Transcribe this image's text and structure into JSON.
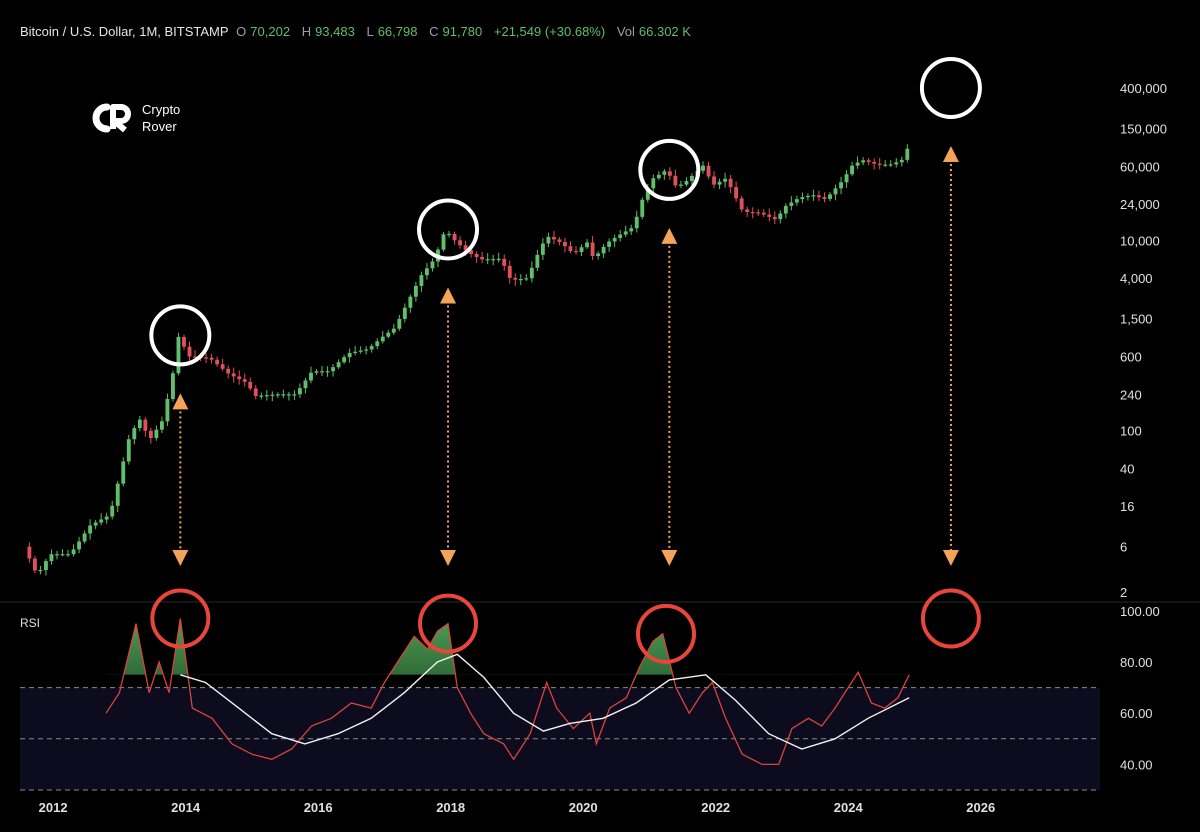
{
  "header": {
    "symbol": "Bitcoin / U.S. Dollar, 1M, BITSTAMP",
    "open_label": "O",
    "open": "70,202",
    "high_label": "H",
    "high": "93,483",
    "low_label": "L",
    "low": "66,798",
    "close_label": "C",
    "close": "91,780",
    "change": "+21,549 (+30.68%)",
    "vol_label": "Vol",
    "vol": "66.302 K"
  },
  "logo": {
    "line1": "Crypto",
    "line2": "Rover",
    "icon": "crypto-rover-logo-icon"
  },
  "colors": {
    "up": "#5fbf6a",
    "down": "#e0505a",
    "rsi": "#d9443a",
    "rsi_ma": "#f2f2f2",
    "arrow": "#f5a35a",
    "circle_red": "#e8463a"
  },
  "chart_data": [
    {
      "type": "candlestick",
      "title": "Bitcoin / U.S. Dollar, 1M, BITSTAMP",
      "x_ticks": [
        "2012",
        "2014",
        "2016",
        "2018",
        "2020",
        "2022",
        "2024",
        "2026"
      ],
      "y_scale": "log",
      "y_ticks": [
        "400,000",
        "150,000",
        "60,000",
        "24,000",
        "10,000",
        "4,000",
        "1,500",
        "600",
        "240",
        "100",
        "40",
        "16",
        "6",
        "2"
      ],
      "ylim": [
        2,
        400000
      ],
      "xlim": [
        2011.5,
        2027.8
      ],
      "highlighted_peaks": [
        {
          "x": 2013.92,
          "y": 1000
        },
        {
          "x": 2017.96,
          "y": 13000
        },
        {
          "x": 2021.3,
          "y": 55000
        },
        {
          "x": 2025.55,
          "y": 400000
        }
      ],
      "price_path": [
        [
          2011.6,
          6
        ],
        [
          2011.8,
          3
        ],
        [
          2012.0,
          5
        ],
        [
          2012.3,
          5
        ],
        [
          2012.6,
          10
        ],
        [
          2012.9,
          13
        ],
        [
          2013.2,
          90
        ],
        [
          2013.35,
          130
        ],
        [
          2013.5,
          80
        ],
        [
          2013.7,
          130
        ],
        [
          2013.85,
          400
        ],
        [
          2013.92,
          1000
        ],
        [
          2014.1,
          600
        ],
        [
          2014.4,
          580
        ],
        [
          2014.7,
          390
        ],
        [
          2014.95,
          320
        ],
        [
          2015.1,
          230
        ],
        [
          2015.4,
          240
        ],
        [
          2015.7,
          240
        ],
        [
          2015.95,
          420
        ],
        [
          2016.2,
          420
        ],
        [
          2016.5,
          650
        ],
        [
          2016.8,
          720
        ],
        [
          2017.0,
          950
        ],
        [
          2017.2,
          1200
        ],
        [
          2017.4,
          2300
        ],
        [
          2017.6,
          4300
        ],
        [
          2017.8,
          6400
        ],
        [
          2017.96,
          13000
        ],
        [
          2018.1,
          10000
        ],
        [
          2018.3,
          7500
        ],
        [
          2018.5,
          6300
        ],
        [
          2018.8,
          6400
        ],
        [
          2018.95,
          3800
        ],
        [
          2019.2,
          4000
        ],
        [
          2019.4,
          8500
        ],
        [
          2019.5,
          11000
        ],
        [
          2019.7,
          9500
        ],
        [
          2019.9,
          7200
        ],
        [
          2020.1,
          9500
        ],
        [
          2020.2,
          6400
        ],
        [
          2020.4,
          9400
        ],
        [
          2020.6,
          11500
        ],
        [
          2020.8,
          13800
        ],
        [
          2020.95,
          29000
        ],
        [
          2021.1,
          45000
        ],
        [
          2021.3,
          55000
        ],
        [
          2021.45,
          36000
        ],
        [
          2021.6,
          42000
        ],
        [
          2021.85,
          61000
        ],
        [
          2022.0,
          38000
        ],
        [
          2022.2,
          45000
        ],
        [
          2022.45,
          20000
        ],
        [
          2022.7,
          19500
        ],
        [
          2022.95,
          16500
        ],
        [
          2023.1,
          23000
        ],
        [
          2023.3,
          28000
        ],
        [
          2023.5,
          30000
        ],
        [
          2023.7,
          27000
        ],
        [
          2023.95,
          42000
        ],
        [
          2024.1,
          61000
        ],
        [
          2024.25,
          70000
        ],
        [
          2024.5,
          62000
        ],
        [
          2024.7,
          63000
        ],
        [
          2024.85,
          70202
        ],
        [
          2024.92,
          91780
        ]
      ]
    },
    {
      "type": "line",
      "title": "RSI",
      "y_ticks": [
        "100.00",
        "80.00",
        "60.00",
        "40.00"
      ],
      "ylim": [
        30,
        105
      ],
      "band": [
        30,
        70
      ],
      "series": [
        {
          "name": "RSI",
          "points": [
            [
              2012.8,
              60
            ],
            [
              2013.0,
              68
            ],
            [
              2013.25,
              95
            ],
            [
              2013.45,
              68
            ],
            [
              2013.6,
              80
            ],
            [
              2013.75,
              68
            ],
            [
              2013.92,
              97
            ],
            [
              2014.1,
              62
            ],
            [
              2014.4,
              58
            ],
            [
              2014.7,
              48
            ],
            [
              2015.0,
              44
            ],
            [
              2015.3,
              42
            ],
            [
              2015.6,
              46
            ],
            [
              2015.9,
              55
            ],
            [
              2016.2,
              58
            ],
            [
              2016.5,
              64
            ],
            [
              2016.8,
              62
            ],
            [
              2017.0,
              72
            ],
            [
              2017.2,
              80
            ],
            [
              2017.45,
              90
            ],
            [
              2017.65,
              85
            ],
            [
              2017.8,
              92
            ],
            [
              2017.96,
              95
            ],
            [
              2018.1,
              70
            ],
            [
              2018.3,
              60
            ],
            [
              2018.5,
              52
            ],
            [
              2018.8,
              48
            ],
            [
              2018.95,
              42
            ],
            [
              2019.2,
              52
            ],
            [
              2019.45,
              72
            ],
            [
              2019.6,
              62
            ],
            [
              2019.85,
              54
            ],
            [
              2020.1,
              60
            ],
            [
              2020.2,
              48
            ],
            [
              2020.4,
              62
            ],
            [
              2020.65,
              66
            ],
            [
              2020.85,
              78
            ],
            [
              2021.05,
              88
            ],
            [
              2021.2,
              91
            ],
            [
              2021.4,
              70
            ],
            [
              2021.6,
              60
            ],
            [
              2021.8,
              68
            ],
            [
              2021.95,
              72
            ],
            [
              2022.15,
              58
            ],
            [
              2022.4,
              44
            ],
            [
              2022.7,
              40
            ],
            [
              2022.95,
              40
            ],
            [
              2023.15,
              54
            ],
            [
              2023.4,
              58
            ],
            [
              2023.6,
              55
            ],
            [
              2023.8,
              62
            ],
            [
              2024.0,
              70
            ],
            [
              2024.15,
              76
            ],
            [
              2024.35,
              64
            ],
            [
              2024.55,
              62
            ],
            [
              2024.75,
              66
            ],
            [
              2024.92,
              75
            ]
          ]
        },
        {
          "name": "RSI MA",
          "points": [
            [
              2013.92,
              75
            ],
            [
              2014.3,
              72
            ],
            [
              2014.8,
              62
            ],
            [
              2015.3,
              52
            ],
            [
              2015.8,
              48
            ],
            [
              2016.3,
              52
            ],
            [
              2016.8,
              58
            ],
            [
              2017.3,
              68
            ],
            [
              2017.8,
              80
            ],
            [
              2018.1,
              83
            ],
            [
              2018.5,
              74
            ],
            [
              2018.95,
              60
            ],
            [
              2019.4,
              53
            ],
            [
              2019.8,
              56
            ],
            [
              2020.3,
              58
            ],
            [
              2020.8,
              64
            ],
            [
              2021.3,
              73
            ],
            [
              2021.85,
              75
            ],
            [
              2022.3,
              65
            ],
            [
              2022.8,
              52
            ],
            [
              2023.3,
              46
            ],
            [
              2023.8,
              50
            ],
            [
              2024.3,
              58
            ],
            [
              2024.92,
              66
            ]
          ]
        }
      ],
      "highlighted_peaks": [
        {
          "x": 2013.92,
          "y": 97
        },
        {
          "x": 2017.96,
          "y": 95
        },
        {
          "x": 2021.25,
          "y": 91
        },
        {
          "x": 2025.55,
          "y": 97
        }
      ]
    }
  ],
  "rsi_label": "RSI"
}
